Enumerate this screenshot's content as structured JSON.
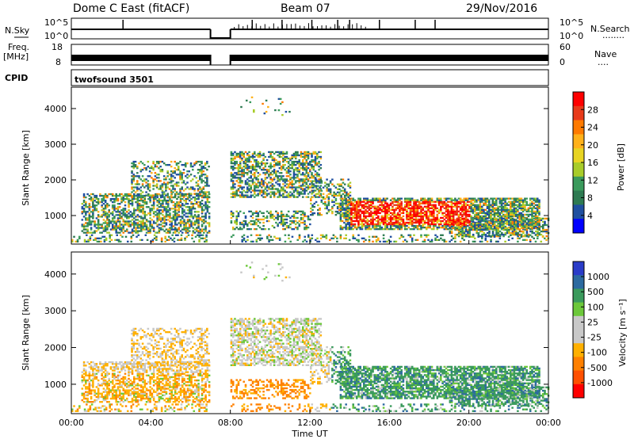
{
  "header": {
    "station": "Dome C East (fitACF)",
    "beam": "Beam 07",
    "date": "29/Nov/2016"
  },
  "panels": {
    "nsky": {
      "label": "N.Sky",
      "left_ticks": [
        "10^5",
        "10^0"
      ],
      "right_ticks": [
        "10^5",
        "10^0"
      ],
      "right_label": "N.Search",
      "right_marker": "........"
    },
    "freq": {
      "label_top": "Freq.",
      "label_unit": "[MHz]",
      "left_ticks": [
        "18",
        "8"
      ],
      "right_ticks": [
        "60",
        "0"
      ],
      "right_label": "Nave",
      "right_marker": "...."
    },
    "cpid": {
      "label": "CPID",
      "program": "twofsound 3501"
    }
  },
  "chart_data": [
    {
      "type": "heatmap",
      "quantity": "Power",
      "ylabel": "Slant Range [km]",
      "xlabel": "Time UT",
      "ylim": [
        200,
        4600
      ],
      "xlim": [
        "00:00",
        "24:00"
      ],
      "y_ticks": [
        "1000",
        "2000",
        "3000",
        "4000"
      ],
      "x_ticks": [
        "00:00",
        "04:00",
        "08:00",
        "12:00",
        "16:00",
        "20:00",
        "00:00"
      ],
      "colorbar": {
        "label": "Power [dB]",
        "ticks": [
          "28",
          "24",
          "20",
          "16",
          "12",
          "8",
          "4"
        ],
        "colors": [
          "#ff0000",
          "#e83a1a",
          "#ff7a00",
          "#ffb11a",
          "#e8d422",
          "#a8cc2a",
          "#3a9a5c",
          "#2e7a52",
          "#1f4fa0",
          "#0000ff"
        ]
      }
    },
    {
      "type": "heatmap",
      "quantity": "Velocity",
      "ylabel": "Slant Range [km]",
      "xlabel": "Time UT",
      "ylim": [
        200,
        4600
      ],
      "xlim": [
        "00:00",
        "24:00"
      ],
      "y_ticks": [
        "1000",
        "2000",
        "3000",
        "4000"
      ],
      "x_ticks": [
        "00:00",
        "04:00",
        "08:00",
        "12:00",
        "16:00",
        "20:00",
        "00:00"
      ],
      "colorbar": {
        "label": "Velocity [m s⁻¹]",
        "ticks": [
          "1000",
          "500",
          "100",
          "25",
          "-25",
          "-100",
          "-500",
          "-1000"
        ],
        "colors": [
          "#2a3cc8",
          "#2c6aa0",
          "#3a9a5c",
          "#6cc83a",
          "#c8c8c8",
          "#c8c8c8",
          "#ffb000",
          "#ff8000",
          "#ff5000",
          "#ff0000"
        ]
      }
    }
  ]
}
